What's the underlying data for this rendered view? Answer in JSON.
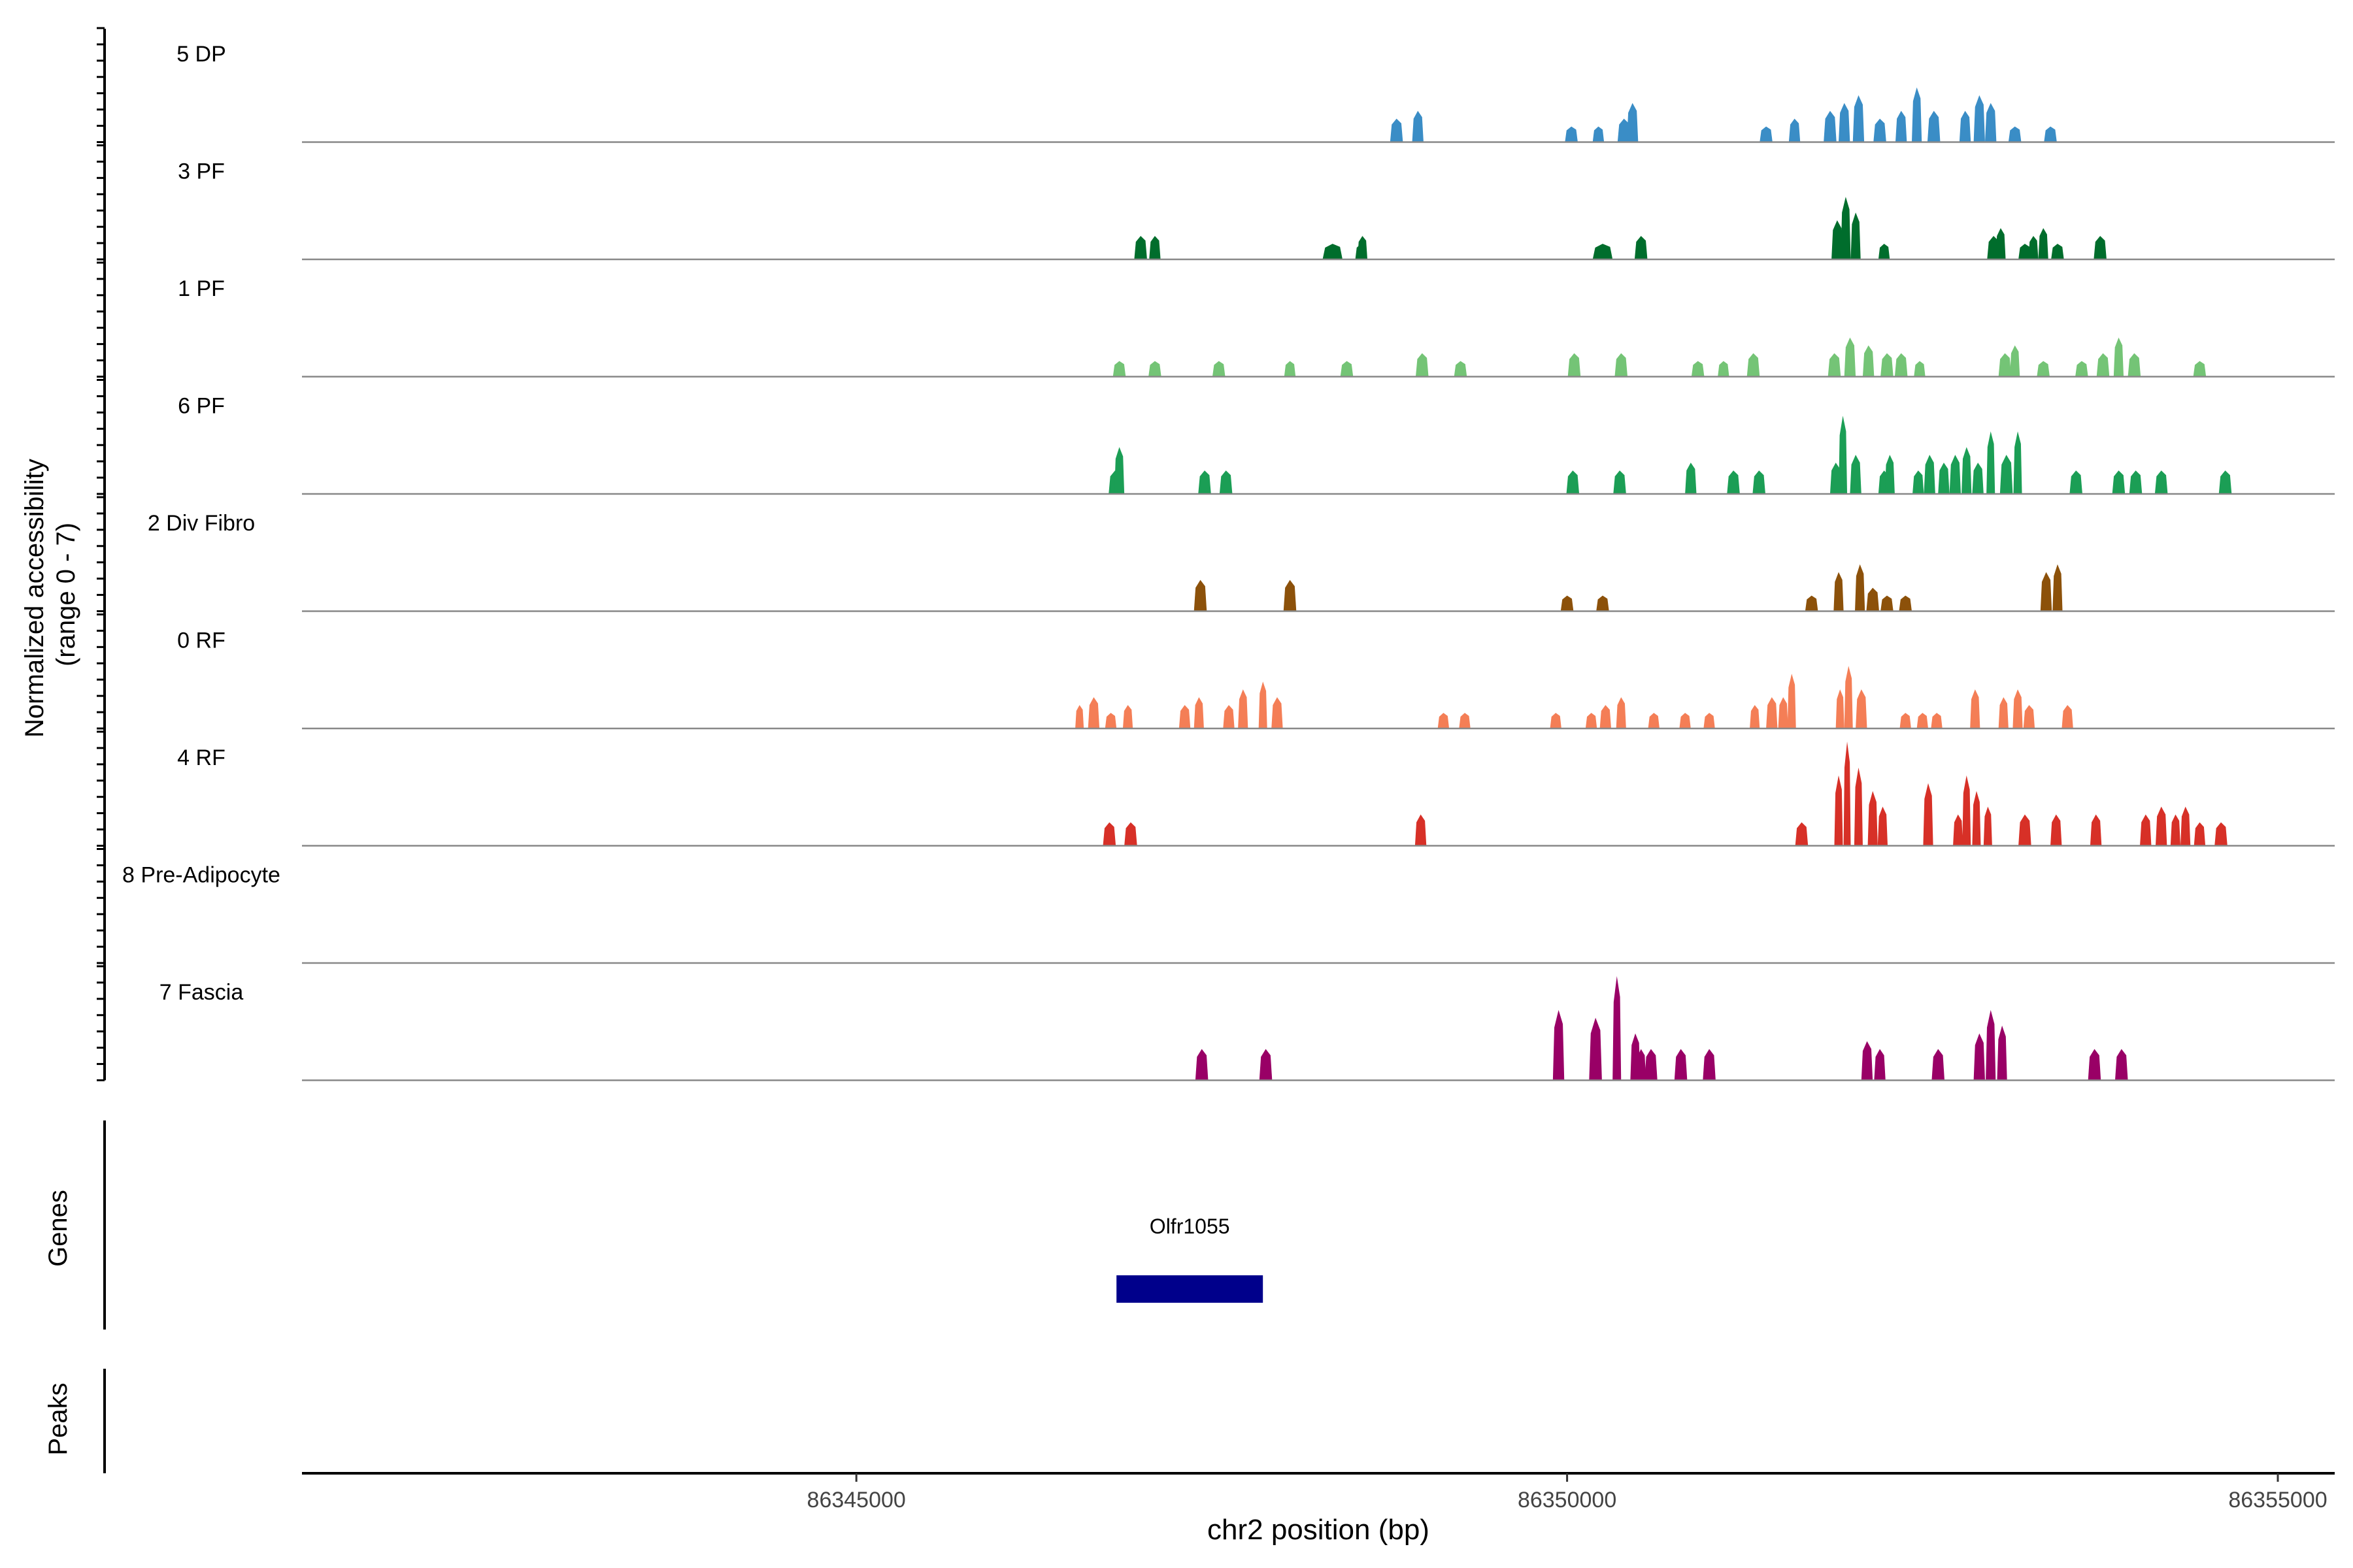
{
  "chart_data": {
    "type": "area",
    "ylabel": "Normalized accessibility\n(range 0 - 7)",
    "ylim": [
      0,
      7
    ],
    "xlabel": "chr2 position (bp)",
    "xlim": [
      86341100,
      86355400
    ],
    "xticks": [
      86345000,
      86350000,
      86355000
    ],
    "xtick_labels": [
      "86345000",
      "86350000",
      "86355000"
    ],
    "grid": false,
    "tracks": [
      {
        "name": "5 DP",
        "color": "#3a8dc6",
        "peaks": [
          [
            86348800,
            90,
            3
          ],
          [
            86348950,
            80,
            4
          ],
          [
            86350030,
            90,
            2
          ],
          [
            86350220,
            80,
            2
          ],
          [
            86350400,
            90,
            3
          ],
          [
            86350460,
            80,
            5
          ],
          [
            86351400,
            90,
            2
          ],
          [
            86351600,
            80,
            3
          ],
          [
            86351850,
            90,
            4
          ],
          [
            86351950,
            80,
            5
          ],
          [
            86352050,
            80,
            6
          ],
          [
            86352200,
            90,
            3
          ],
          [
            86352350,
            80,
            4
          ],
          [
            86352460,
            70,
            7
          ],
          [
            86352580,
            90,
            4
          ],
          [
            86352800,
            80,
            4
          ],
          [
            86352900,
            80,
            6
          ],
          [
            86352980,
            80,
            5
          ],
          [
            86353150,
            90,
            2
          ],
          [
            86353400,
            90,
            2
          ]
        ]
      },
      {
        "name": "3 PF",
        "color": "#006d2c",
        "peaks": [
          [
            86347000,
            90,
            3
          ],
          [
            86347100,
            80,
            3
          ],
          [
            86348350,
            140,
            2
          ],
          [
            86348550,
            80,
            2
          ],
          [
            86348560,
            70,
            3
          ],
          [
            86350250,
            140,
            2
          ],
          [
            86350520,
            90,
            3
          ],
          [
            86351900,
            80,
            5
          ],
          [
            86351960,
            70,
            8
          ],
          [
            86352030,
            70,
            6
          ],
          [
            86352230,
            80,
            2
          ],
          [
            86353000,
            90,
            3
          ],
          [
            86353050,
            70,
            4
          ],
          [
            86353220,
            90,
            2
          ],
          [
            86353280,
            70,
            3
          ],
          [
            86353350,
            70,
            4
          ],
          [
            86353450,
            90,
            2
          ],
          [
            86353750,
            90,
            3
          ]
        ]
      },
      {
        "name": "1 PF",
        "color": "#74c476",
        "peaks": [
          [
            86346850,
            90,
            2
          ],
          [
            86347100,
            90,
            2
          ],
          [
            86347550,
            90,
            2
          ],
          [
            86348050,
            80,
            2
          ],
          [
            86348450,
            90,
            2
          ],
          [
            86348980,
            90,
            3
          ],
          [
            86349250,
            90,
            2
          ],
          [
            86350050,
            90,
            3
          ],
          [
            86350380,
            90,
            3
          ],
          [
            86350920,
            90,
            2
          ],
          [
            86351100,
            80,
            2
          ],
          [
            86351310,
            90,
            3
          ],
          [
            86351880,
            90,
            3
          ],
          [
            86351990,
            80,
            5
          ],
          [
            86352120,
            80,
            4
          ],
          [
            86352250,
            90,
            3
          ],
          [
            86352350,
            90,
            3
          ],
          [
            86352480,
            80,
            2
          ],
          [
            86353080,
            90,
            3
          ],
          [
            86353150,
            70,
            4
          ],
          [
            86353350,
            90,
            2
          ],
          [
            86353620,
            90,
            2
          ],
          [
            86353770,
            90,
            3
          ],
          [
            86353880,
            70,
            5
          ],
          [
            86353990,
            90,
            3
          ],
          [
            86354450,
            90,
            2
          ]
        ]
      },
      {
        "name": "6 PF",
        "color": "#1b9e55",
        "peaks": [
          [
            86346820,
            90,
            3
          ],
          [
            86346850,
            70,
            6
          ],
          [
            86347450,
            90,
            3
          ],
          [
            86347600,
            90,
            3
          ],
          [
            86350040,
            90,
            3
          ],
          [
            86350370,
            90,
            3
          ],
          [
            86350870,
            80,
            4
          ],
          [
            86351170,
            90,
            3
          ],
          [
            86351350,
            90,
            3
          ],
          [
            86351890,
            80,
            4
          ],
          [
            86351940,
            60,
            10
          ],
          [
            86352030,
            80,
            5
          ],
          [
            86352230,
            80,
            3
          ],
          [
            86352270,
            70,
            5
          ],
          [
            86352470,
            80,
            3
          ],
          [
            86352550,
            80,
            5
          ],
          [
            86352650,
            80,
            4
          ],
          [
            86352730,
            80,
            5
          ],
          [
            86352810,
            70,
            6
          ],
          [
            86352890,
            80,
            4
          ],
          [
            86352980,
            60,
            8
          ],
          [
            86353090,
            90,
            5
          ],
          [
            86353170,
            60,
            8
          ],
          [
            86353580,
            90,
            3
          ],
          [
            86353880,
            90,
            3
          ],
          [
            86354000,
            90,
            3
          ],
          [
            86354180,
            90,
            3
          ],
          [
            86354630,
            90,
            3
          ]
        ]
      },
      {
        "name": "2 Div Fibro",
        "color": "#8c510a",
        "peaks": [
          [
            86347420,
            90,
            4
          ],
          [
            86348050,
            90,
            4
          ],
          [
            86350000,
            90,
            2
          ],
          [
            86350250,
            90,
            2
          ],
          [
            86351720,
            90,
            2
          ],
          [
            86351910,
            70,
            5
          ],
          [
            86352060,
            70,
            6
          ],
          [
            86352150,
            90,
            3
          ],
          [
            86352250,
            90,
            2
          ],
          [
            86352380,
            90,
            2
          ],
          [
            86353370,
            80,
            5
          ],
          [
            86353450,
            70,
            6
          ]
        ]
      },
      {
        "name": "0 RF",
        "color": "#f47e56",
        "peaks": [
          [
            86346570,
            60,
            3
          ],
          [
            86346670,
            80,
            4
          ],
          [
            86346790,
            80,
            2
          ],
          [
            86346910,
            70,
            3
          ],
          [
            86347310,
            80,
            3
          ],
          [
            86347410,
            70,
            4
          ],
          [
            86347620,
            80,
            3
          ],
          [
            86347720,
            70,
            5
          ],
          [
            86347860,
            60,
            6
          ],
          [
            86347960,
            80,
            4
          ],
          [
            86349130,
            80,
            2
          ],
          [
            86349280,
            80,
            2
          ],
          [
            86349920,
            80,
            2
          ],
          [
            86350170,
            80,
            2
          ],
          [
            86350270,
            80,
            3
          ],
          [
            86350380,
            70,
            4
          ],
          [
            86350610,
            80,
            2
          ],
          [
            86350830,
            80,
            2
          ],
          [
            86351000,
            80,
            2
          ],
          [
            86351320,
            70,
            3
          ],
          [
            86351440,
            80,
            4
          ],
          [
            86351520,
            70,
            4
          ],
          [
            86351580,
            60,
            7
          ],
          [
            86351920,
            60,
            5
          ],
          [
            86351980,
            60,
            8
          ],
          [
            86352070,
            80,
            5
          ],
          [
            86352380,
            80,
            2
          ],
          [
            86352500,
            80,
            2
          ],
          [
            86352600,
            80,
            2
          ],
          [
            86352870,
            70,
            5
          ],
          [
            86353070,
            70,
            4
          ],
          [
            86353170,
            70,
            5
          ],
          [
            86353250,
            80,
            3
          ],
          [
            86353520,
            80,
            3
          ]
        ]
      },
      {
        "name": "4 RF",
        "color": "#d73027",
        "peaks": [
          [
            86346780,
            90,
            3
          ],
          [
            86346930,
            90,
            3
          ],
          [
            86348970,
            80,
            4
          ],
          [
            86351650,
            90,
            3
          ],
          [
            86351910,
            60,
            9
          ],
          [
            86351970,
            50,
            14
          ],
          [
            86352050,
            60,
            10
          ],
          [
            86352150,
            70,
            7
          ],
          [
            86352220,
            70,
            5
          ],
          [
            86352540,
            70,
            8
          ],
          [
            86352750,
            70,
            4
          ],
          [
            86352810,
            60,
            9
          ],
          [
            86352880,
            60,
            7
          ],
          [
            86352960,
            60,
            5
          ],
          [
            86353220,
            90,
            4
          ],
          [
            86353440,
            80,
            4
          ],
          [
            86353720,
            80,
            4
          ],
          [
            86354070,
            80,
            4
          ],
          [
            86354180,
            80,
            5
          ],
          [
            86354280,
            70,
            4
          ],
          [
            86354350,
            70,
            5
          ],
          [
            86354450,
            80,
            3
          ],
          [
            86354600,
            90,
            3
          ]
        ]
      },
      {
        "name": "8 Pre-Adipocyte",
        "color": "#bdbdbd",
        "peaks": []
      },
      {
        "name": "7 Fascia",
        "color": "#990066",
        "peaks": [
          [
            86347430,
            90,
            4
          ],
          [
            86347880,
            90,
            4
          ],
          [
            86349940,
            80,
            9
          ],
          [
            86350200,
            90,
            8
          ],
          [
            86350350,
            60,
            14
          ],
          [
            86350480,
            70,
            6
          ],
          [
            86350520,
            70,
            4
          ],
          [
            86350590,
            90,
            4
          ],
          [
            86350800,
            90,
            4
          ],
          [
            86351000,
            90,
            4
          ],
          [
            86352110,
            80,
            5
          ],
          [
            86352200,
            80,
            4
          ],
          [
            86352610,
            90,
            4
          ],
          [
            86352900,
            80,
            6
          ],
          [
            86352980,
            70,
            9
          ],
          [
            86353060,
            70,
            7
          ],
          [
            86353710,
            90,
            4
          ],
          [
            86353900,
            90,
            4
          ]
        ]
      }
    ],
    "genes": [
      {
        "name": "Olfr1055",
        "start": 86346830,
        "end": 86347860
      }
    ]
  },
  "axes": {
    "genes_label": "Genes",
    "peaks_label": "Peaks"
  }
}
